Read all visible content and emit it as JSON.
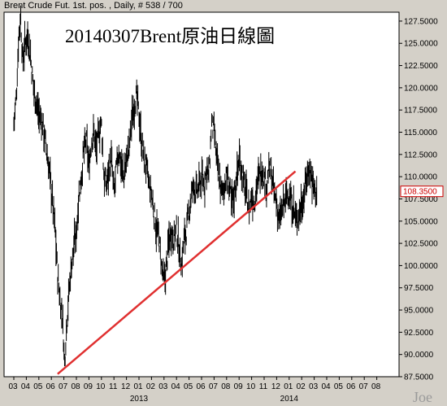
{
  "header": "Brent Crude Fut. 1st. pos. , Daily, # 538 / 700",
  "title": "20140307Brent原油日線圖",
  "watermark": "Joe",
  "chart_data": {
    "type": "ohlc",
    "ylim": [
      87.5,
      128.5
    ],
    "yticks": [
      "127.5000",
      "125.0000",
      "122.5000",
      "120.0000",
      "117.5000",
      "115.0000",
      "112.5000",
      "110.0000",
      "107.5000",
      "105.0000",
      "102.5000",
      "100.0000",
      "97.5000",
      "95.0000",
      "92.5000",
      "90.0000",
      "87.5000"
    ],
    "ytick_values": [
      127.5,
      125,
      122.5,
      120,
      117.5,
      115,
      112.5,
      110,
      107.5,
      105,
      102.5,
      100,
      97.5,
      95,
      92.5,
      90,
      87.5
    ],
    "last_value_label": "108.3500",
    "last_value": 108.35,
    "months": [
      "03",
      "04",
      "05",
      "06",
      "07",
      "08",
      "09",
      "10",
      "11",
      "12",
      "01",
      "02",
      "03",
      "04",
      "05",
      "06",
      "07",
      "08",
      "09",
      "10",
      "11",
      "12",
      "01",
      "02",
      "03",
      "04",
      "05",
      "06",
      "07",
      "08"
    ],
    "year_labels": [
      {
        "label": "2013",
        "month_index": 10
      },
      {
        "label": "2014",
        "month_index": 22
      }
    ],
    "data_end_month": 24.2,
    "price_path": [
      [
        0,
        116
      ],
      [
        0.2,
        119
      ],
      [
        0.4,
        126
      ],
      [
        0.55,
        128
      ],
      [
        0.7,
        123
      ],
      [
        0.9,
        125
      ],
      [
        1.1,
        126
      ],
      [
        1.3,
        124
      ],
      [
        1.5,
        121
      ],
      [
        1.7,
        119
      ],
      [
        2.0,
        117
      ],
      [
        2.3,
        116
      ],
      [
        2.6,
        113
      ],
      [
        2.9,
        110
      ],
      [
        3.1,
        107
      ],
      [
        3.3,
        104
      ],
      [
        3.5,
        99
      ],
      [
        3.7,
        96
      ],
      [
        3.9,
        94
      ],
      [
        4.05,
        89
      ],
      [
        4.2,
        93
      ],
      [
        4.4,
        97
      ],
      [
        4.6,
        100
      ],
      [
        4.8,
        102
      ],
      [
        5.0,
        104
      ],
      [
        5.2,
        108
      ],
      [
        5.4,
        110
      ],
      [
        5.6,
        113
      ],
      [
        5.8,
        114
      ],
      [
        6.0,
        111
      ],
      [
        6.2,
        114
      ],
      [
        6.4,
        115
      ],
      [
        6.6,
        113
      ],
      [
        6.8,
        115
      ],
      [
        7.0,
        116
      ],
      [
        7.2,
        110
      ],
      [
        7.4,
        109
      ],
      [
        7.6,
        111
      ],
      [
        7.8,
        112
      ],
      [
        8.0,
        108
      ],
      [
        8.2,
        111
      ],
      [
        8.4,
        113
      ],
      [
        8.6,
        111
      ],
      [
        8.8,
        110
      ],
      [
        9.0,
        112
      ],
      [
        9.2,
        113
      ],
      [
        9.4,
        116
      ],
      [
        9.6,
        118
      ],
      [
        9.8,
        119
      ],
      [
        10.0,
        117
      ],
      [
        10.2,
        114
      ],
      [
        10.4,
        112
      ],
      [
        10.6,
        111
      ],
      [
        10.8,
        109
      ],
      [
        11.0,
        108
      ],
      [
        11.2,
        106
      ],
      [
        11.4,
        104
      ],
      [
        11.6,
        103
      ],
      [
        11.8,
        100
      ],
      [
        12.0,
        98
      ],
      [
        12.2,
        100
      ],
      [
        12.4,
        103
      ],
      [
        12.6,
        104
      ],
      [
        12.8,
        103
      ],
      [
        13.0,
        104
      ],
      [
        13.2,
        102
      ],
      [
        13.4,
        100
      ],
      [
        13.6,
        103
      ],
      [
        13.8,
        104
      ],
      [
        14.0,
        106
      ],
      [
        14.2,
        108
      ],
      [
        14.4,
        109
      ],
      [
        14.6,
        108
      ],
      [
        14.8,
        109
      ],
      [
        15.0,
        110
      ],
      [
        15.2,
        109
      ],
      [
        15.4,
        111
      ],
      [
        15.6,
        110
      ],
      [
        15.8,
        116
      ],
      [
        16.0,
        115
      ],
      [
        16.2,
        112
      ],
      [
        16.4,
        110
      ],
      [
        16.6,
        108
      ],
      [
        16.8,
        109
      ],
      [
        17.0,
        110
      ],
      [
        17.2,
        109
      ],
      [
        17.4,
        107
      ],
      [
        17.6,
        108
      ],
      [
        17.8,
        110
      ],
      [
        18.0,
        112
      ],
      [
        18.2,
        111
      ],
      [
        18.4,
        109
      ],
      [
        18.6,
        108
      ],
      [
        18.8,
        106
      ],
      [
        19.0,
        108
      ],
      [
        19.2,
        107
      ],
      [
        19.4,
        109
      ],
      [
        19.6,
        110
      ],
      [
        19.8,
        111
      ],
      [
        20.0,
        110
      ],
      [
        20.2,
        109
      ],
      [
        20.4,
        111
      ],
      [
        20.6,
        110
      ],
      [
        20.8,
        108
      ],
      [
        21.0,
        107
      ],
      [
        21.2,
        105
      ],
      [
        21.4,
        106
      ],
      [
        21.6,
        107
      ],
      [
        21.8,
        108
      ],
      [
        22.0,
        108
      ],
      [
        22.2,
        107
      ],
      [
        22.4,
        106
      ],
      [
        22.6,
        105
      ],
      [
        22.8,
        106
      ],
      [
        23.0,
        107
      ],
      [
        23.2,
        108
      ],
      [
        23.4,
        110
      ],
      [
        23.6,
        111
      ],
      [
        23.8,
        110
      ],
      [
        24.0,
        108.5
      ],
      [
        24.2,
        108.35
      ]
    ],
    "trendline": {
      "start": {
        "month": 3.5,
        "value": 87.8
      },
      "end": {
        "month": 22.5,
        "value": 110.6
      },
      "color": "#e03030"
    }
  }
}
